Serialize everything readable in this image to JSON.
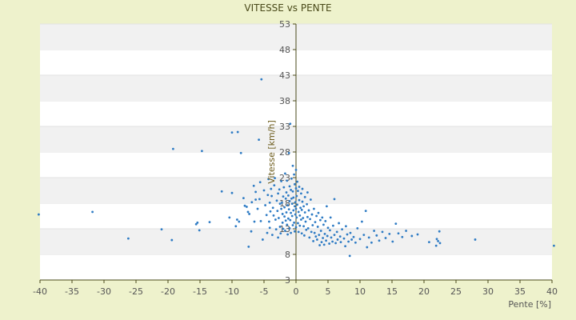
{
  "chart_data": {
    "type": "scatter",
    "title": "VITESSE vs PENTE",
    "xlabel": "Pente [%]",
    "ylabel": "Vitesse [km/h]",
    "xlim": [
      -40,
      40
    ],
    "ylim": [
      3,
      53
    ],
    "xticks": [
      -40,
      -35,
      -30,
      -25,
      -20,
      -15,
      -10,
      -5,
      0,
      5,
      10,
      15,
      20,
      25,
      30,
      35,
      40
    ],
    "yticks": [
      3,
      8,
      13,
      18,
      23,
      28,
      33,
      38,
      43,
      48,
      53
    ],
    "grid": "horizontal alternating bands",
    "legend": "none",
    "colors": {
      "points": "#2e7bc4",
      "band": "#f1f1f1",
      "background": "#eef2cc",
      "axis": "#4a4a1a"
    },
    "series": [
      {
        "points": [
          [
            -40.2,
            15.8
          ],
          [
            -31.8,
            16.3
          ],
          [
            -26.2,
            11.1
          ],
          [
            -21,
            12.9
          ],
          [
            -19.4,
            10.8
          ],
          [
            -19.2,
            28.6
          ],
          [
            -15.6,
            13.9
          ],
          [
            -15.4,
            14.2
          ],
          [
            -15.1,
            12.7
          ],
          [
            -14.7,
            28.2
          ],
          [
            -13.5,
            14.3
          ],
          [
            -11.6,
            20.3
          ],
          [
            -10.4,
            15.2
          ],
          [
            -10,
            20
          ],
          [
            -10,
            31.8
          ],
          [
            -9.4,
            13.5
          ],
          [
            -9.2,
            14.8
          ],
          [
            -9.1,
            31.9
          ],
          [
            -8.9,
            14.4
          ],
          [
            -8.6,
            27.8
          ],
          [
            -8.2,
            19
          ],
          [
            -8,
            17.5
          ],
          [
            -7.7,
            17.3
          ],
          [
            -7.5,
            16.3
          ],
          [
            -7.4,
            9.5
          ],
          [
            -7.3,
            15.9
          ],
          [
            -7,
            12.5
          ],
          [
            -6.9,
            18.2
          ],
          [
            -6.6,
            21.4
          ],
          [
            -6.5,
            14.4
          ],
          [
            -6.3,
            20.2
          ],
          [
            -6.3,
            18.7
          ],
          [
            -6,
            16.9
          ],
          [
            -5.8,
            30.4
          ],
          [
            -5.7,
            18.8
          ],
          [
            -5.6,
            22.1
          ],
          [
            -5.5,
            14.5
          ],
          [
            -5.4,
            42.2
          ],
          [
            -5.2,
            10.9
          ],
          [
            -5,
            20.5
          ],
          [
            -4.8,
            17.6
          ],
          [
            -4.6,
            15.7
          ],
          [
            -4.5,
            12.2
          ],
          [
            -4.4,
            19.6
          ],
          [
            -4.3,
            22.7
          ],
          [
            -4.2,
            14.4
          ],
          [
            -4.1,
            13.2
          ],
          [
            -4.1,
            18.1
          ],
          [
            -4,
            16.4
          ],
          [
            -3.9,
            20.8
          ],
          [
            -3.8,
            19.4
          ],
          [
            -3.7,
            11.8
          ],
          [
            -3.6,
            17.1
          ],
          [
            -3.5,
            15.6
          ],
          [
            -3.4,
            21.5
          ],
          [
            -3.3,
            22.9
          ],
          [
            -3.2,
            14.8
          ],
          [
            -3.1,
            12.9
          ],
          [
            -3,
            18.5
          ],
          [
            -2.9,
            16.5
          ],
          [
            -2.8,
            19.9
          ],
          [
            -2.8,
            11.3
          ],
          [
            -2.7,
            15.1
          ],
          [
            -2.6,
            20.7
          ],
          [
            -2.5,
            17.9
          ],
          [
            -2.5,
            13.4
          ],
          [
            -2.4,
            12.1
          ],
          [
            -2.3,
            16.9
          ],
          [
            -2.3,
            22.3
          ],
          [
            -2.2,
            18.1
          ],
          [
            -2.1,
            14.2
          ],
          [
            -2.1,
            15.9
          ],
          [
            -2,
            19.3
          ],
          [
            -2,
            13
          ],
          [
            -1.9,
            21.1
          ],
          [
            -1.8,
            17.2
          ],
          [
            -1.8,
            15.4
          ],
          [
            -1.7,
            23.8
          ],
          [
            -1.7,
            12.6
          ],
          [
            -1.6,
            18.9
          ],
          [
            -1.6,
            14.6
          ],
          [
            -1.5,
            20.1
          ],
          [
            -1.5,
            16.2
          ],
          [
            -1.4,
            13.8
          ],
          [
            -1.4,
            22.4
          ],
          [
            -1.3,
            17.6
          ],
          [
            -1.3,
            11.9
          ],
          [
            -1.2,
            19.5
          ],
          [
            -1.2,
            15
          ],
          [
            -1.1,
            27.8
          ],
          [
            -1.1,
            16.8
          ],
          [
            -1,
            21.3
          ],
          [
            -1,
            18.4
          ],
          [
            -1,
            13.1
          ],
          [
            -0.9,
            14.7
          ],
          [
            -0.9,
            33.5
          ],
          [
            -0.8,
            20.6
          ],
          [
            -0.8,
            16.1
          ],
          [
            -0.8,
            12.2
          ],
          [
            -0.7,
            18.9
          ],
          [
            -0.7,
            22.8
          ],
          [
            -0.6,
            15.5
          ],
          [
            -0.6,
            17.9
          ],
          [
            -0.5,
            13.7
          ],
          [
            -0.5,
            20.3
          ],
          [
            -0.5,
            25.3
          ],
          [
            -0.4,
            16.6
          ],
          [
            -0.4,
            19.1
          ],
          [
            -0.3,
            14.2
          ],
          [
            -0.3,
            23.6
          ],
          [
            -0.2,
            17.4
          ],
          [
            -0.2,
            21.7
          ],
          [
            -0.2,
            12.5
          ],
          [
            -0.1,
            18.2
          ],
          [
            -0.1,
            15.8
          ],
          [
            0,
            20.9
          ],
          [
            0,
            16.9
          ],
          [
            0,
            13.3
          ],
          [
            0,
            24.5
          ],
          [
            0.1,
            19.4
          ],
          [
            0.1,
            15.2
          ],
          [
            0.2,
            22.2
          ],
          [
            0.2,
            17.7
          ],
          [
            0.3,
            14.1
          ],
          [
            0.3,
            20.4
          ],
          [
            0.4,
            16.3
          ],
          [
            0.4,
            12.4
          ],
          [
            0.5,
            18.6
          ],
          [
            0.5,
            21.2
          ],
          [
            0.6,
            15.6
          ],
          [
            0.6,
            13.6
          ],
          [
            0.7,
            17.1
          ],
          [
            0.8,
            19.9
          ],
          [
            0.8,
            14.8
          ],
          [
            0.9,
            16.7
          ],
          [
            0.9,
            12.1
          ],
          [
            1,
            18.3
          ],
          [
            1,
            20.8
          ],
          [
            1.1,
            15.1
          ],
          [
            1.2,
            13.5
          ],
          [
            1.2,
            17.4
          ],
          [
            1.3,
            11.7
          ],
          [
            1.4,
            16.2
          ],
          [
            1.4,
            19.2
          ],
          [
            1.5,
            14.4
          ],
          [
            1.6,
            12.8
          ],
          [
            1.7,
            17.8
          ],
          [
            1.8,
            15.3
          ],
          [
            1.8,
            20.1
          ],
          [
            1.9,
            13.1
          ],
          [
            2,
            16.6
          ],
          [
            2.1,
            11.3
          ],
          [
            2.2,
            14.9
          ],
          [
            2.3,
            18.7
          ],
          [
            2.4,
            12.4
          ],
          [
            2.5,
            15.8
          ],
          [
            2.6,
            13.7
          ],
          [
            2.7,
            10.6
          ],
          [
            2.8,
            16.9
          ],
          [
            2.9,
            12.2
          ],
          [
            3,
            14.3
          ],
          [
            3.1,
            11.5
          ],
          [
            3.2,
            15.5
          ],
          [
            3.3,
            10.9
          ],
          [
            3.4,
            13.4
          ],
          [
            3.5,
            16.1
          ],
          [
            3.6,
            11.8
          ],
          [
            3.7,
            9.8
          ],
          [
            3.8,
            14.7
          ],
          [
            3.9,
            12.6
          ],
          [
            4,
            10.4
          ],
          [
            4.1,
            15.2
          ],
          [
            4.2,
            11.2
          ],
          [
            4.3,
            13.8
          ],
          [
            4.4,
            9.9
          ],
          [
            4.5,
            12
          ],
          [
            4.6,
            14.5
          ],
          [
            4.7,
            10.7
          ],
          [
            4.8,
            17.4
          ],
          [
            4.9,
            11.6
          ],
          [
            5,
            13.2
          ],
          [
            5.2,
            10.1
          ],
          [
            5.3,
            12.7
          ],
          [
            5.4,
            15.2
          ],
          [
            5.5,
            11.3
          ],
          [
            5.7,
            10.5
          ],
          [
            5.8,
            13.6
          ],
          [
            6,
            18.8
          ],
          [
            6,
            11.8
          ],
          [
            6.2,
            10.2
          ],
          [
            6.4,
            12.4
          ],
          [
            6.5,
            10.9
          ],
          [
            6.7,
            14.1
          ],
          [
            6.9,
            11.5
          ],
          [
            7,
            10.4
          ],
          [
            7.2,
            12.9
          ],
          [
            7.5,
            11.1
          ],
          [
            7.7,
            9.6
          ],
          [
            7.8,
            13.5
          ],
          [
            8,
            11.9
          ],
          [
            8.2,
            10.5
          ],
          [
            8.5,
            12.2
          ],
          [
            8.4,
            7.7
          ],
          [
            8.7,
            10.9
          ],
          [
            9,
            11.4
          ],
          [
            9.3,
            10.3
          ],
          [
            9.6,
            13.1
          ],
          [
            10,
            11
          ],
          [
            10.3,
            14.4
          ],
          [
            10.6,
            11.8
          ],
          [
            10.9,
            16.5
          ],
          [
            11.1,
            9.4
          ],
          [
            11.4,
            11.3
          ],
          [
            11.8,
            10.3
          ],
          [
            12.2,
            12.6
          ],
          [
            12.6,
            11.7
          ],
          [
            13,
            10.7
          ],
          [
            13.5,
            12.4
          ],
          [
            14,
            11.2
          ],
          [
            14.6,
            12
          ],
          [
            15.1,
            10.5
          ],
          [
            15.6,
            14
          ],
          [
            16,
            12.1
          ],
          [
            16.6,
            11.4
          ],
          [
            17.2,
            12.6
          ],
          [
            18.1,
            11.6
          ],
          [
            19,
            11.9
          ],
          [
            20.8,
            10.4
          ],
          [
            21.9,
            9.7
          ],
          [
            22,
            11
          ],
          [
            22.2,
            10.6
          ],
          [
            22.4,
            12.5
          ],
          [
            22.5,
            10.2
          ],
          [
            28,
            10.9
          ],
          [
            40.3,
            9.7
          ]
        ]
      }
    ]
  }
}
